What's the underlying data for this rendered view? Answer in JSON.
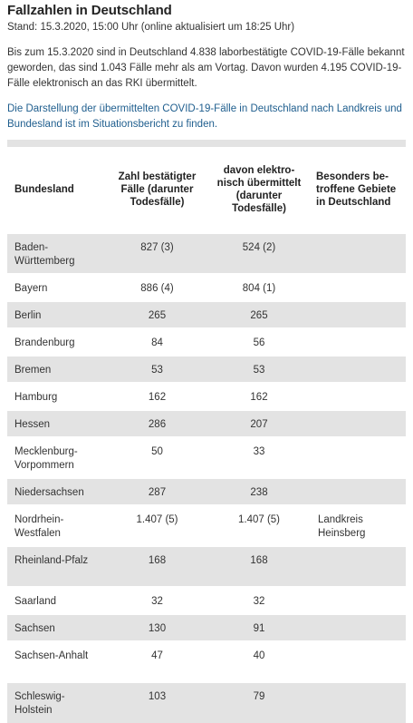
{
  "title": "Fallzahlen in Deutschland",
  "stand": "Stand: 15.3.2020, 15:00 Uhr (online aktualisiert um 18:25 Uhr)",
  "paragraph": "Bis zum 15.3.2020 sind in Deutschland 4.838 laborbestätigte COVID-19-Fälle bekannt geworden, das sind 1.043 Fälle mehr als am Vortag. Davon wurden 4.195 COVID-19-Fälle elektronisch an das RKI übermittelt.",
  "link_text": "Die Darstellung der übermittelten COVID-19-Fälle in Deutschland nach Landkreis und Bundesland ist im Situationsbericht zu finden.",
  "table": {
    "headers": {
      "bundesland": "Bundesland",
      "zahl": "Zahl bestätigter Fälle (darunter Todesfälle)",
      "elektronisch": "davon elektro­nisch über­mittelt (darunter Todesfälle)",
      "gebiete": "Besonders be­troffene Gebiete in Deutschland"
    },
    "rows": [
      {
        "land": "Baden-Württemberg",
        "zahl": "827 (3)",
        "elektronisch": "524 (2)",
        "gebiete": ""
      },
      {
        "land": "Bayern",
        "zahl": "886 (4)",
        "elektronisch": "804 (1)",
        "gebiete": ""
      },
      {
        "land": "Berlin",
        "zahl": "265",
        "elektronisch": "265",
        "gebiete": ""
      },
      {
        "land": "Brandenburg",
        "zahl": "84",
        "elektronisch": "56",
        "gebiete": ""
      },
      {
        "land": "Bremen",
        "zahl": "53",
        "elektronisch": "53",
        "gebiete": ""
      },
      {
        "land": "Hamburg",
        "zahl": "162",
        "elektronisch": "162",
        "gebiete": ""
      },
      {
        "land": "Hessen",
        "zahl": "286",
        "elektronisch": "207",
        "gebiete": ""
      },
      {
        "land": "Mecklenburg-Vorpommern",
        "zahl": "50",
        "elektronisch": "33",
        "gebiete": ""
      },
      {
        "land": "Niedersachsen",
        "zahl": "287",
        "elektronisch": "238",
        "gebiete": ""
      },
      {
        "land": "Nordrhein-Westfalen",
        "zahl": "1.407 (5)",
        "elektronisch": "1.407 (5)",
        "gebiete": "Landkreis Heinsberg"
      },
      {
        "land": "Rheinland-Pfalz",
        "zahl": "168",
        "elektronisch": "168",
        "gebiete": ""
      },
      {
        "land": "Saarland",
        "zahl": "32",
        "elektronisch": "32",
        "gebiete": ""
      },
      {
        "land": "Sachsen",
        "zahl": "130",
        "elektronisch": "91",
        "gebiete": ""
      },
      {
        "land": "Sachsen-Anhalt",
        "zahl": "47",
        "elektronisch": "40",
        "gebiete": ""
      },
      {
        "land": "Schleswig-Holstein",
        "zahl": "103",
        "elektronisch": "79",
        "gebiete": ""
      }
    ]
  }
}
